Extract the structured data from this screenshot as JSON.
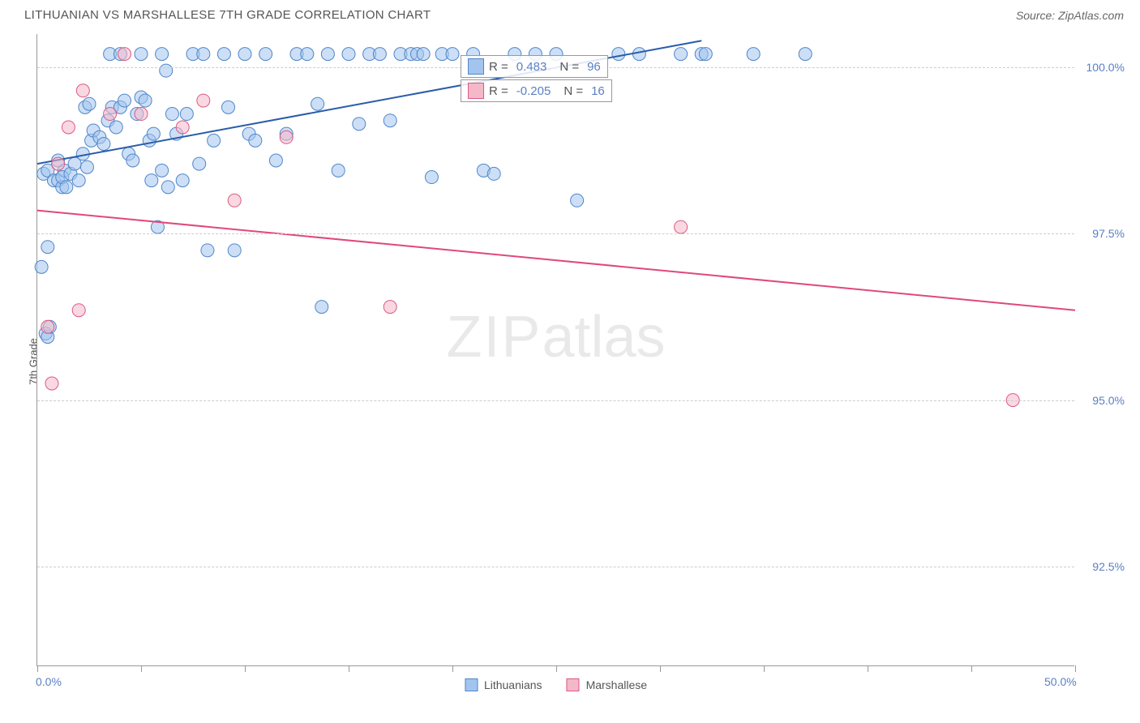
{
  "header": {
    "title": "LITHUANIAN VS MARSHALLESE 7TH GRADE CORRELATION CHART",
    "source": "Source: ZipAtlas.com"
  },
  "chart": {
    "type": "scatter",
    "ylabel": "7th Grade",
    "watermark_bold": "ZIP",
    "watermark_light": "atlas",
    "background_color": "#ffffff",
    "grid_color": "#cccccc",
    "axis_color": "#999999",
    "label_color": "#5a7fc4",
    "xlim": [
      0,
      50
    ],
    "ylim": [
      91.0,
      100.5
    ],
    "xticks": [
      0,
      5,
      10,
      15,
      20,
      25,
      30,
      35,
      40,
      45,
      50
    ],
    "xtick_labels": {
      "0": "0.0%",
      "50": "50.0%"
    },
    "yticks": [
      92.5,
      95.0,
      97.5,
      100.0
    ],
    "ytick_labels": [
      "92.5%",
      "95.0%",
      "97.5%",
      "100.0%"
    ],
    "series": [
      {
        "name": "Lithuanians",
        "color_fill": "#a3c4ee",
        "color_stroke": "#5086c9",
        "marker_size": 8,
        "fill_opacity": 0.55,
        "regression": {
          "R": "0.483",
          "N": "96",
          "line_color": "#2a5ca8",
          "x1": 0,
          "y1": 98.55,
          "x2": 32,
          "y2": 100.4
        },
        "points": [
          [
            0.2,
            97.0
          ],
          [
            0.4,
            96.0
          ],
          [
            0.5,
            95.95
          ],
          [
            0.6,
            96.1
          ],
          [
            0.3,
            98.4
          ],
          [
            0.5,
            98.45
          ],
          [
            0.8,
            98.3
          ],
          [
            1.0,
            98.3
          ],
          [
            1.2,
            98.2
          ],
          [
            1.3,
            98.45
          ],
          [
            0.5,
            97.3
          ],
          [
            1.0,
            98.6
          ],
          [
            1.2,
            98.35
          ],
          [
            1.4,
            98.2
          ],
          [
            1.6,
            98.4
          ],
          [
            1.8,
            98.55
          ],
          [
            2.0,
            98.3
          ],
          [
            2.2,
            98.7
          ],
          [
            2.4,
            98.5
          ],
          [
            2.6,
            98.9
          ],
          [
            2.3,
            99.4
          ],
          [
            2.5,
            99.45
          ],
          [
            2.7,
            99.05
          ],
          [
            3.0,
            98.95
          ],
          [
            3.2,
            98.85
          ],
          [
            3.4,
            99.2
          ],
          [
            3.6,
            99.4
          ],
          [
            3.8,
            99.1
          ],
          [
            4.0,
            99.4
          ],
          [
            4.2,
            99.5
          ],
          [
            4.4,
            98.7
          ],
          [
            4.6,
            98.6
          ],
          [
            4.8,
            99.3
          ],
          [
            5.0,
            99.55
          ],
          [
            5.2,
            99.5
          ],
          [
            5.4,
            98.9
          ],
          [
            5.6,
            99.0
          ],
          [
            5.8,
            97.6
          ],
          [
            6.0,
            98.45
          ],
          [
            6.2,
            99.95
          ],
          [
            3.5,
            100.2
          ],
          [
            4.0,
            100.2
          ],
          [
            5.0,
            100.2
          ],
          [
            6.0,
            100.2
          ],
          [
            6.5,
            99.3
          ],
          [
            6.7,
            99.0
          ],
          [
            7.0,
            98.3
          ],
          [
            7.2,
            99.3
          ],
          [
            7.5,
            100.2
          ],
          [
            8.0,
            100.2
          ],
          [
            8.2,
            97.25
          ],
          [
            8.5,
            98.9
          ],
          [
            9.0,
            100.2
          ],
          [
            9.2,
            99.4
          ],
          [
            9.5,
            97.25
          ],
          [
            10.0,
            100.2
          ],
          [
            10.2,
            99.0
          ],
          [
            10.5,
            98.9
          ],
          [
            11.0,
            100.2
          ],
          [
            11.5,
            98.6
          ],
          [
            12.0,
            99.0
          ],
          [
            12.5,
            100.2
          ],
          [
            13.0,
            100.2
          ],
          [
            13.5,
            99.45
          ],
          [
            13.7,
            96.4
          ],
          [
            14.0,
            100.2
          ],
          [
            14.5,
            98.45
          ],
          [
            15.0,
            100.2
          ],
          [
            15.5,
            99.15
          ],
          [
            16.0,
            100.2
          ],
          [
            16.5,
            100.2
          ],
          [
            17.0,
            99.2
          ],
          [
            17.5,
            100.2
          ],
          [
            18.0,
            100.2
          ],
          [
            18.3,
            100.2
          ],
          [
            18.6,
            100.2
          ],
          [
            19.0,
            98.35
          ],
          [
            19.5,
            100.2
          ],
          [
            20.0,
            100.2
          ],
          [
            21.0,
            100.2
          ],
          [
            21.5,
            98.45
          ],
          [
            22.0,
            98.4
          ],
          [
            23.0,
            100.2
          ],
          [
            24.0,
            100.2
          ],
          [
            25.0,
            100.2
          ],
          [
            26.0,
            98.0
          ],
          [
            28.0,
            100.2
          ],
          [
            29.0,
            100.2
          ],
          [
            31.0,
            100.2
          ],
          [
            32.0,
            100.2
          ],
          [
            32.2,
            100.2
          ],
          [
            34.5,
            100.2
          ],
          [
            37.0,
            100.2
          ],
          [
            5.5,
            98.3
          ],
          [
            6.3,
            98.2
          ],
          [
            7.8,
            98.55
          ]
        ]
      },
      {
        "name": "Marshallese",
        "color_fill": "#f5b8c8",
        "color_stroke": "#db5a85",
        "marker_size": 8,
        "fill_opacity": 0.55,
        "regression": {
          "R": "-0.205",
          "N": "16",
          "line_color": "#e0487c",
          "x1": 0,
          "y1": 97.85,
          "x2": 50,
          "y2": 96.35
        },
        "points": [
          [
            0.5,
            96.1
          ],
          [
            0.7,
            95.25
          ],
          [
            1.0,
            98.55
          ],
          [
            1.5,
            99.1
          ],
          [
            2.0,
            96.35
          ],
          [
            2.2,
            99.65
          ],
          [
            3.5,
            99.3
          ],
          [
            4.2,
            100.2
          ],
          [
            5.0,
            99.3
          ],
          [
            7.0,
            99.1
          ],
          [
            8.0,
            99.5
          ],
          [
            9.5,
            98.0
          ],
          [
            12.0,
            98.95
          ],
          [
            17.0,
            96.4
          ],
          [
            31.0,
            97.6
          ],
          [
            47.0,
            95.0
          ]
        ]
      }
    ],
    "top_legend": [
      {
        "swatch_fill": "#a3c4ee",
        "swatch_stroke": "#5086c9",
        "r_label": "R =",
        "r_val": "0.483",
        "n_label": "N =",
        "n_val": "96"
      },
      {
        "swatch_fill": "#f5b8c8",
        "swatch_stroke": "#db5a85",
        "r_label": "R =",
        "r_val": "-0.205",
        "n_label": "N =",
        "n_val": "16"
      }
    ],
    "bottom_legend": [
      {
        "swatch_fill": "#a3c4ee",
        "swatch_stroke": "#5086c9",
        "label": "Lithuanians"
      },
      {
        "swatch_fill": "#f5b8c8",
        "swatch_stroke": "#db5a85",
        "label": "Marshallese"
      }
    ]
  }
}
